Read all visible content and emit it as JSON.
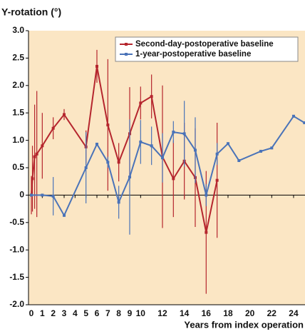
{
  "chart_data": {
    "type": "line",
    "ylabel": "Y-rotation (°)",
    "xlabel": "Years from index operation",
    "xlim": [
      0,
      25
    ],
    "ylim": [
      -2.0,
      3.0
    ],
    "xticks": [
      0,
      1,
      2,
      3,
      4,
      5,
      6,
      7,
      8,
      9,
      10,
      12,
      14,
      16,
      18,
      20,
      22,
      24
    ],
    "yticks": [
      {
        "value": 3.0,
        "label": "3.0"
      },
      2.5,
      {
        "value": 2.0,
        "label": "2.0"
      },
      1.5,
      {
        "value": 1.0,
        "label": "1.0"
      },
      0.5,
      0,
      -0.5,
      {
        "value": -1.0,
        "label": "-1.0"
      },
      -1.5,
      {
        "value": -2.0,
        "label": "-2.0"
      }
    ],
    "legend": "upper right",
    "series": [
      {
        "name": "Second-day-postoperative baseline",
        "color": "#b5262e",
        "x": [
          0,
          0.1,
          0.3,
          0.5,
          1,
          2,
          3,
          5,
          6,
          7,
          8,
          9,
          10,
          11,
          12,
          13,
          14,
          15,
          16,
          17
        ],
        "values": [
          0,
          0.3,
          0.7,
          0.75,
          0.9,
          1.22,
          1.47,
          0.88,
          2.35,
          1.28,
          0.6,
          1.12,
          1.68,
          1.8,
          0.7,
          0.3,
          0.62,
          0.32,
          -0.68,
          0.27
        ],
        "errors": [
          0.35,
          0.6,
          0.95,
          1.15,
          0.6,
          0.2,
          0.1,
          0.3,
          0.3,
          1.2,
          0.35,
          0.85,
          0.3,
          0.4,
          1.3,
          0.7,
          0.7,
          0.9,
          1.12,
          1.05
        ]
      },
      {
        "name": "1-year-postoperative baseline",
        "color": "#4a73b8",
        "x": [
          0,
          1,
          2,
          3,
          5,
          6,
          7,
          8,
          9,
          10,
          11,
          12,
          13,
          14,
          15,
          16,
          17,
          18,
          19,
          21,
          22,
          24,
          25
        ],
        "values": [
          0,
          0,
          -0.02,
          -0.37,
          0.5,
          0.93,
          0.6,
          -0.13,
          0.33,
          0.97,
          0.9,
          0.68,
          1.15,
          1.12,
          0.82,
          0,
          0.75,
          0.94,
          0.63,
          0.8,
          0.86,
          1.44,
          1.32
        ],
        "errors": [
          0,
          0,
          0.35,
          0,
          0.65,
          0,
          0.1,
          0.3,
          1.05,
          0.4,
          0.35,
          0.45,
          0.2,
          0.6,
          0.6,
          0.2,
          0.2,
          0,
          0,
          0,
          0,
          0,
          0
        ]
      }
    ]
  }
}
